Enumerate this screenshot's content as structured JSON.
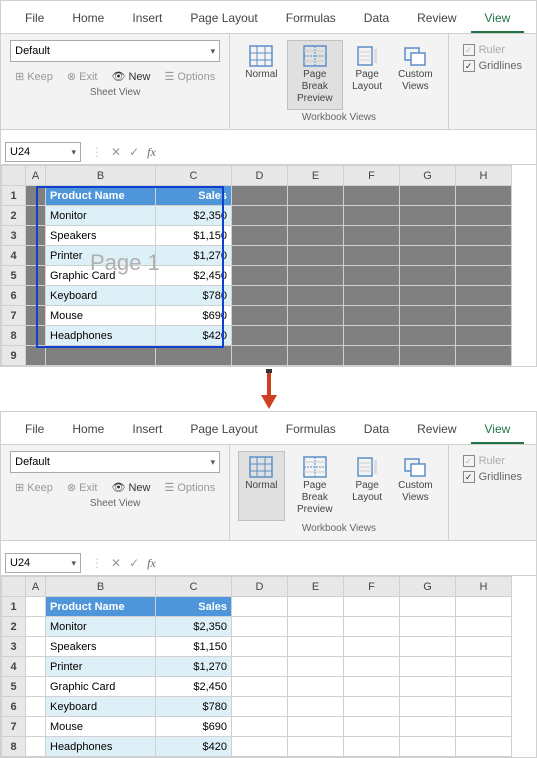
{
  "tabs": [
    "File",
    "Home",
    "Insert",
    "Page Layout",
    "Formulas",
    "Data",
    "Review",
    "View"
  ],
  "active_tab": "View",
  "sheetview": {
    "dropdown": "Default",
    "keep": "Keep",
    "exit": "Exit",
    "new": "New",
    "options": "Options",
    "group_label": "Sheet View"
  },
  "wbviews": {
    "normal": "Normal",
    "pagebreak": "Page Break\nPreview",
    "pagelayout": "Page\nLayout",
    "custom": "Custom\nViews",
    "group_label": "Workbook Views"
  },
  "show": {
    "ruler": "Ruler",
    "gridlines": "Gridlines"
  },
  "namebox": "U24",
  "fx": "fx",
  "columns": [
    "A",
    "B",
    "C",
    "D",
    "E",
    "F",
    "G",
    "H"
  ],
  "col_widths": {
    "corner": 14,
    "A": 20,
    "B": 110,
    "C": 76,
    "other": 56
  },
  "table": {
    "header": [
      "Product Name",
      "Sales"
    ],
    "rows": [
      [
        "Monitor",
        "$2,350"
      ],
      [
        "Speakers",
        "$1,150"
      ],
      [
        "Printer",
        "$1,270"
      ],
      [
        "Graphic Card",
        "$2,450"
      ],
      [
        "Keyboard",
        "$780"
      ],
      [
        "Mouse",
        "$690"
      ],
      [
        "Headphones",
        "$420"
      ]
    ]
  },
  "page_label": "Page 1",
  "colors": {
    "header_bg": "#4e95d9",
    "band_bg": "#def0f7",
    "page_border": "#1040d0",
    "arrow": "#d04020",
    "accent": "#217346"
  },
  "pane1": {
    "selected_view": "pagebreak",
    "rows": 9,
    "dark_outside": true
  },
  "pane2": {
    "selected_view": "normal",
    "rows": 8,
    "dark_outside": false
  }
}
